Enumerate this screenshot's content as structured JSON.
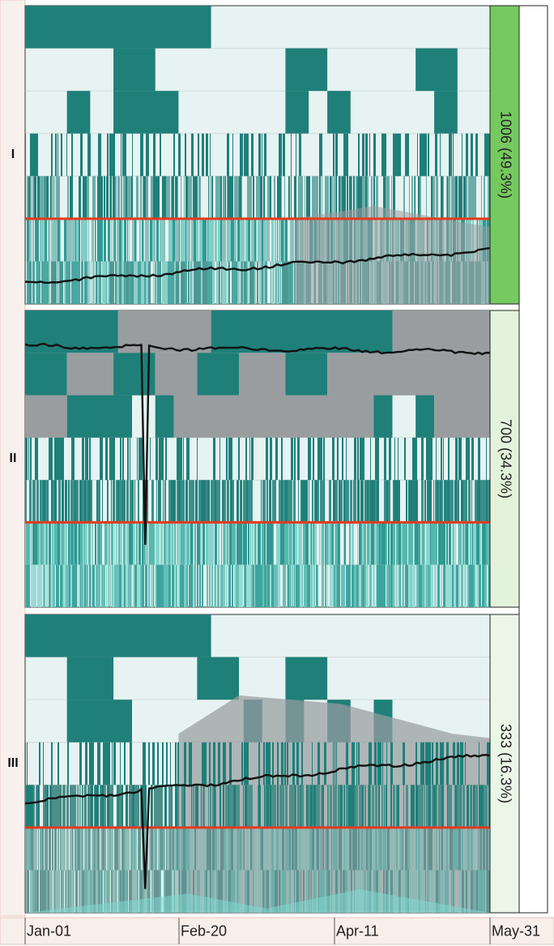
{
  "chart_data": {
    "type": "heatmap",
    "title": "",
    "xlabel": "",
    "ylabel": "",
    "x_ticks": [
      "Jan-01",
      "Feb-20",
      "Apr-11",
      "May-31"
    ],
    "x_domain": [
      "Jan-01",
      "May-31"
    ],
    "reference_line_color": "#e43a1d",
    "trace_color": "#111111",
    "colors": {
      "dark_teal": "#1f7f79",
      "light_teal": "#e6f3f2",
      "gray": "#999d9f",
      "accent_green": "#75c95f",
      "light_green": "#e3f3db",
      "pale_green": "#ebf7e6",
      "pink": "#f7e3dc"
    },
    "clusters": [
      {
        "label": "I",
        "count": 1006,
        "percent": "49.3%",
        "summary": "1006 (49.3%)",
        "band_color": "#75c95f",
        "trace_start": 0.93,
        "trace_end": 0.82
      },
      {
        "label": "II",
        "count": 700,
        "percent": "34.3%",
        "summary": "700 (34.3%)",
        "band_color": "#e3f3db",
        "trace_start": 0.12,
        "trace_end": 0.14
      },
      {
        "label": "III",
        "count": 333,
        "percent": "16.3%",
        "summary": "333 (16.3%)",
        "band_color": "#ebf7e6",
        "trace_start": 0.63,
        "trace_end": 0.47
      }
    ]
  }
}
